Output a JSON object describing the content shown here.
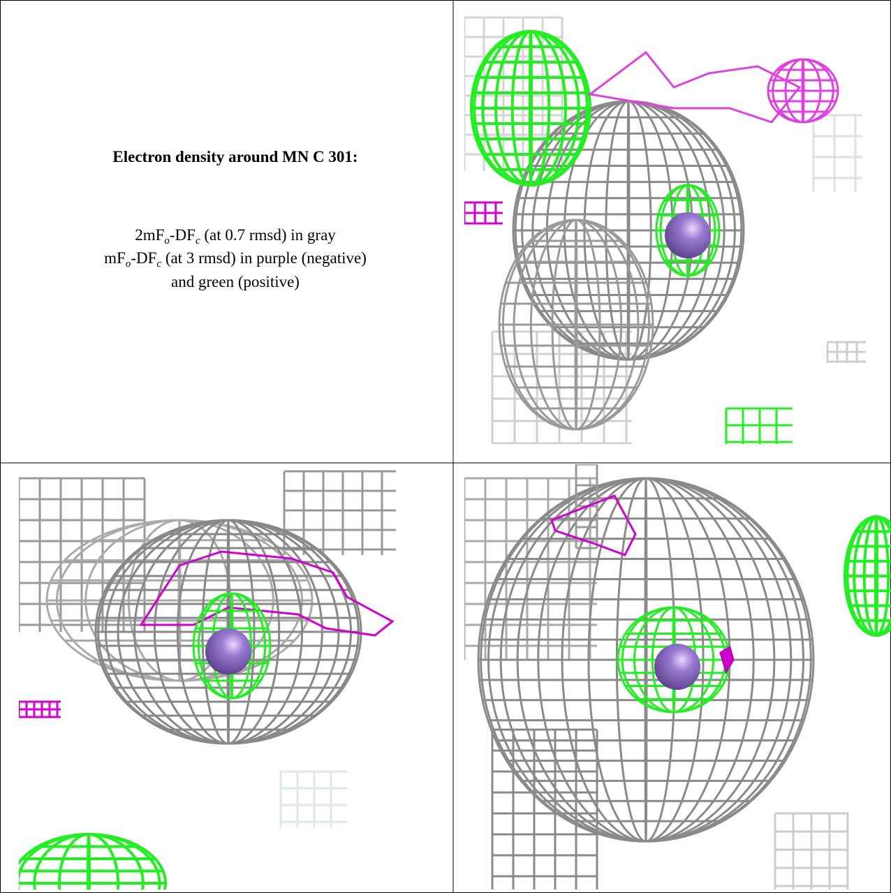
{
  "caption": {
    "title": "Electron density around MN C 301:",
    "lines": [
      {
        "parts": [
          "2mF",
          "o",
          "-DF",
          "c",
          " (at 0.7 rmsd) in gray"
        ]
      },
      {
        "parts": [
          "mF",
          "o",
          "-DF",
          "c",
          " (at 3 rmsd) in purple (negative)"
        ]
      },
      {
        "parts": [
          "and green (positive)"
        ]
      }
    ]
  }
}
